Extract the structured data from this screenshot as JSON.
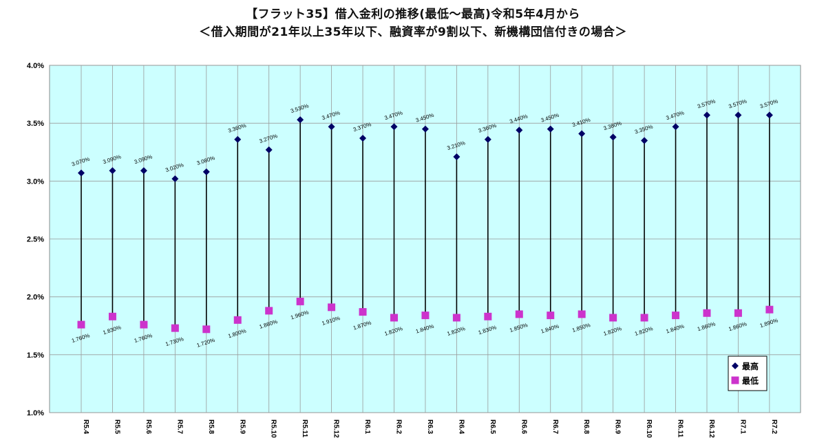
{
  "title_line1": "【フラット35】借入金利の推移(最低～最高)令和5年4月から",
  "title_line2": "＜借入期間が21年以上35年以下、融資率が9割以下、新機構団信付きの場合＞",
  "chart_data": {
    "type": "line",
    "categories": [
      "R5.4",
      "R5.5",
      "R5.6",
      "R5.7",
      "R5.8",
      "R5.9",
      "R5.10",
      "R5.11",
      "R5.12",
      "R6.1",
      "R6.2",
      "R6.3",
      "R6.4",
      "R6.5",
      "R6.6",
      "R6.7",
      "R6.8",
      "R6.9",
      "R6.10",
      "R6.11",
      "R6.12",
      "R7.1",
      "R7.2"
    ],
    "series": [
      {
        "name": "最高",
        "color": "#000066",
        "marker": "diamond",
        "values": [
          3.07,
          3.09,
          3.09,
          3.02,
          3.08,
          3.36,
          3.27,
          3.53,
          3.47,
          3.37,
          3.47,
          3.45,
          3.21,
          3.36,
          3.44,
          3.45,
          3.41,
          3.38,
          3.35,
          3.47,
          3.57,
          3.57,
          3.57
        ],
        "labels": [
          "3.070%",
          "3.090%",
          "3.090%",
          "3.020%",
          "3.080%",
          "3.360%",
          "3.270%",
          "3.530%",
          "3.470%",
          "3.370%",
          "3.470%",
          "3.450%",
          "3.210%",
          "3.360%",
          "3.440%",
          "3.450%",
          "3.410%",
          "3.380%",
          "3.350%",
          "3.470%",
          "3.570%",
          "3.570%",
          "3.570%"
        ]
      },
      {
        "name": "最低",
        "color": "#cc33cc",
        "marker": "square",
        "values": [
          1.76,
          1.83,
          1.76,
          1.73,
          1.72,
          1.8,
          1.88,
          1.96,
          1.91,
          1.87,
          1.82,
          1.84,
          1.82,
          1.83,
          1.85,
          1.84,
          1.85,
          1.82,
          1.82,
          1.84,
          1.86,
          1.86,
          1.89
        ],
        "labels": [
          "1.760%",
          "1.830%",
          "1.760%",
          "1.730%",
          "1.720%",
          "1.800%",
          "1.880%",
          "1.960%",
          "1.910%",
          "1.870%",
          "1.820%",
          "1.840%",
          "1.820%",
          "1.830%",
          "1.850%",
          "1.840%",
          "1.850%",
          "1.820%",
          "1.820%",
          "1.840%",
          "1.860%",
          "1.860%",
          "1.890%"
        ]
      }
    ],
    "ylim": [
      1.0,
      4.0
    ],
    "yticks": [
      "1.0%",
      "1.5%",
      "2.0%",
      "2.5%",
      "3.0%",
      "3.5%",
      "4.0%"
    ],
    "grid": true,
    "plot_background": "#ccffff",
    "legend_position": "bottom-right",
    "xlabel": "",
    "ylabel": ""
  }
}
